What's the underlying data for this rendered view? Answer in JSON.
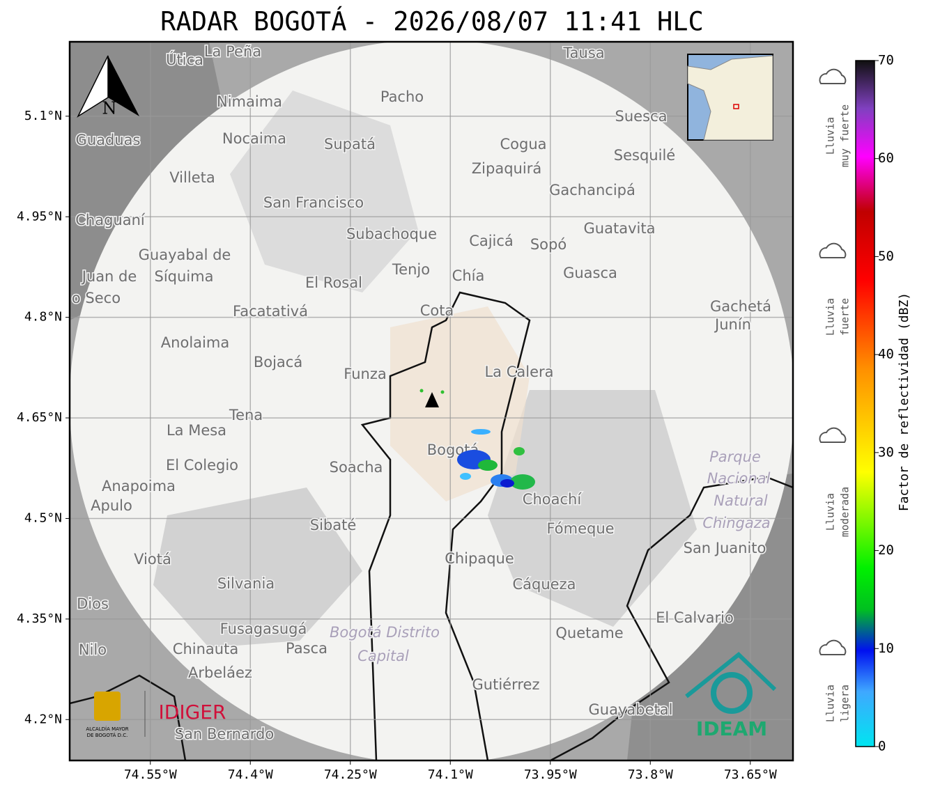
{
  "title": "RADAR BOGOTÁ - 2026/08/07 11:41 HLC",
  "map": {
    "xlim": [
      -74.671,
      -73.586
    ],
    "ylim": [
      4.139,
      5.211
    ],
    "xticks": [
      {
        "value": -74.55,
        "label": "74.55°W"
      },
      {
        "value": -74.4,
        "label": "74.4°W"
      },
      {
        "value": -74.25,
        "label": "74.25°W"
      },
      {
        "value": -74.1,
        "label": "74.1°W"
      },
      {
        "value": -73.95,
        "label": "73.95°W"
      },
      {
        "value": -73.8,
        "label": "73.8°W"
      },
      {
        "value": -73.65,
        "label": "73.65°W"
      }
    ],
    "yticks": [
      {
        "value": 5.1,
        "label": "5.1°N"
      },
      {
        "value": 4.95,
        "label": "4.95°N"
      },
      {
        "value": 4.8,
        "label": "4.8°N"
      },
      {
        "value": 4.65,
        "label": "4.65°N"
      },
      {
        "value": 4.5,
        "label": "4.5°N"
      },
      {
        "value": 4.35,
        "label": "4.35°N"
      },
      {
        "value": 4.2,
        "label": "4.2°N"
      }
    ],
    "grid": true,
    "places": [
      "La Peña",
      "Útica",
      "Tausa",
      "Pacho",
      "Nimaima",
      "Nocaima",
      "Guaduas",
      "Supatá",
      "Cogua",
      "Suesca",
      "Sesquilé",
      "Zipaquirá",
      "Villeta",
      "Gachancipá",
      "San Francisco",
      "Chaguaní",
      "Guatavita",
      "Subachoque",
      "Cajicá",
      "Sopó",
      "Guayabal de",
      "Síquima",
      "Tenjo",
      "Chía",
      "Guasca",
      "El Rosal",
      "Juan de",
      "o Seco",
      "Facatativá",
      "Cota",
      "Gachetá",
      "Junín",
      "Anolaima",
      "Bojacá",
      "Funza",
      "La Calera",
      "Tena",
      "La Mesa",
      "Bogotá",
      "Parque",
      "Nacional",
      "Natural",
      "Chingaza",
      "El Colegio",
      "Soacha",
      "Anapoima",
      "Apulo",
      "Choachí",
      "Sibaté",
      "Fómeque",
      "San Juanito",
      "Viotá",
      "Chipaque",
      "Silvania",
      "Cáqueza",
      "Dios",
      "El Calvario",
      "Fusagasugá",
      "Bogotá Distrito",
      "Capital",
      "Quetame",
      "Chinauta",
      "Pasca",
      "Nilo",
      "Arbeláez",
      "Gutiérrez",
      "Guayabetal",
      "San Bernardo"
    ],
    "north": "N",
    "logos": {
      "alcaldia": [
        "ALCALDÍA MAYOR",
        "DE BOGOTÁ D.C."
      ],
      "idiger": "IDIGER",
      "ideam": "IDEAM"
    }
  },
  "colorbar": {
    "label": "Factor de reflectividad (dBZ)",
    "lim": [
      0,
      70
    ],
    "ticks": [
      0,
      10,
      20,
      30,
      40,
      50,
      60,
      70
    ],
    "categories": [
      [
        "Lluvia",
        "muy fuerte"
      ],
      [
        "Lluvia",
        "fuerte"
      ],
      [
        "Lluvia",
        "moderada"
      ],
      [
        "Lluvia",
        "ligera"
      ]
    ]
  }
}
